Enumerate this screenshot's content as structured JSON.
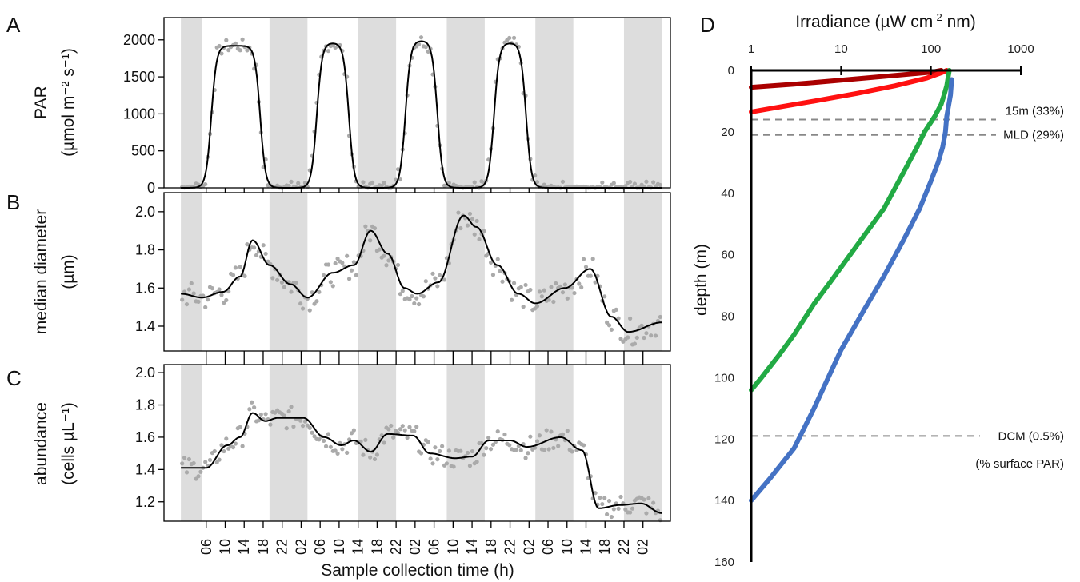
{
  "chart_data": [
    {
      "type": "scatter",
      "panel": "A",
      "ylabel_line1": "PAR",
      "ylabel_line2": "(µmol m⁻² s⁻¹)",
      "yticks": [
        "0",
        "500",
        "1000",
        "1500",
        "2000"
      ],
      "ylim": [
        0,
        2300
      ],
      "xlim": [
        3,
        63
      ],
      "night_bands": [
        [
          4,
          6.3
        ],
        [
          18,
          30.3
        ],
        [
          42,
          54.3
        ],
        [
          66,
          78.3
        ],
        [
          90,
          102.3
        ],
        [
          114,
          119.5
        ]
      ],
      "series": [
        {
          "points_color": "#aaaaaa",
          "line_color": "#000000",
          "x": [
            4,
            5,
            6,
            7,
            8,
            9,
            10,
            11,
            12,
            13,
            14,
            15,
            16,
            17,
            18,
            19,
            20,
            21,
            22,
            23,
            24,
            25,
            26,
            27,
            28,
            29,
            30,
            31,
            32,
            33,
            34,
            35,
            36,
            37,
            38,
            39,
            40,
            41,
            42,
            43,
            44,
            45,
            46,
            47,
            48,
            49,
            50,
            51,
            52,
            53,
            54,
            55,
            56,
            57,
            58,
            59,
            60,
            61,
            62
          ],
          "y": [
            0,
            0,
            100,
            1500,
            1850,
            1900,
            1920,
            1850,
            1700,
            1000,
            100,
            0,
            0,
            0,
            0,
            0,
            0,
            0,
            100,
            1400,
            1900,
            1960,
            1950,
            1850,
            1600,
            700,
            50,
            0,
            0,
            0,
            0,
            0,
            0,
            0,
            80,
            1300,
            1880,
            1990,
            1950,
            1800,
            1500,
            600,
            30,
            0,
            0,
            0,
            0,
            0,
            0,
            0,
            50,
            1200,
            1880,
            1960,
            1920,
            1850,
            1450,
            400,
            0
          ]
        }
      ]
    },
    {
      "type": "scatter",
      "panel": "B",
      "ylabel_line1": "median diameter",
      "ylabel_line2": "(µm)",
      "yticks": [
        "1.4",
        "1.6",
        "1.8",
        "2.0"
      ],
      "ylim": [
        1.27,
        2.1
      ]
    },
    {
      "type": "scatter",
      "panel": "C",
      "ylabel_line1": "abundance",
      "ylabel_line2": "(cells µL⁻¹)",
      "yticks": [
        "1.2",
        "1.4",
        "1.6",
        "1.8",
        "2.0"
      ],
      "ylim": [
        1.08,
        2.05
      ],
      "xlabel": "Sample collection time (h)",
      "xticks": [
        "06",
        "10",
        "14",
        "18",
        "22",
        "02",
        "06",
        "10",
        "14",
        "18",
        "22",
        "02",
        "06",
        "10",
        "14",
        "18",
        "22",
        "02",
        "06",
        "10",
        "14",
        "18",
        "22",
        "02"
      ]
    },
    {
      "type": "line",
      "panel": "D",
      "title": "Irradiance (µW cm-2 nm)",
      "title_main": "Irradiance (µW cm",
      "title_sup": "-2",
      "title_end": " nm)",
      "xscale": "log",
      "xticks": [
        "1",
        "10",
        "100",
        "1000"
      ],
      "xlim": [
        1,
        1000
      ],
      "ylabel": "depth (m)",
      "yticks": [
        "0",
        "20",
        "40",
        "60",
        "80",
        "100",
        "120",
        "140",
        "160"
      ],
      "ylim": [
        0,
        160
      ],
      "reference_lines": [
        {
          "depth": 16,
          "label": "15m (33%)"
        },
        {
          "depth": 21,
          "label": "MLD (29%)"
        },
        {
          "depth": 119,
          "label": "DCM (0.5%)"
        }
      ],
      "note": "(% surface PAR)",
      "series": [
        {
          "color": "#aa0000",
          "x": [
            1,
            3,
            10,
            40,
            100,
            130
          ],
          "y": [
            5.5,
            4.5,
            3.2,
            1.6,
            0.6,
            0
          ]
        },
        {
          "color": "#ff1111",
          "x": [
            1,
            2,
            5,
            15,
            40,
            90,
            130,
            150
          ],
          "y": [
            13.5,
            12,
            10,
            7.5,
            5,
            2.5,
            0.8,
            0
          ]
        },
        {
          "color": "#22aa44",
          "x": [
            160,
            150,
            140,
            130,
            110,
            85,
            70,
            50,
            30,
            15,
            8,
            5,
            3,
            2,
            1.3,
            1
          ],
          "y": [
            0,
            5,
            8,
            11,
            15,
            20,
            25,
            33,
            45,
            57,
            68,
            76,
            86,
            93,
            100,
            104
          ]
        },
        {
          "color": "#4472c4",
          "x": [
            170,
            165,
            150,
            145,
            135,
            120,
            100,
            75,
            50,
            30,
            18,
            10,
            5,
            3,
            1.6,
            1
          ],
          "y": [
            3,
            8,
            15,
            20,
            25,
            30,
            36,
            45,
            55,
            67,
            78,
            91,
            110,
            123,
            133,
            140
          ]
        }
      ]
    }
  ]
}
